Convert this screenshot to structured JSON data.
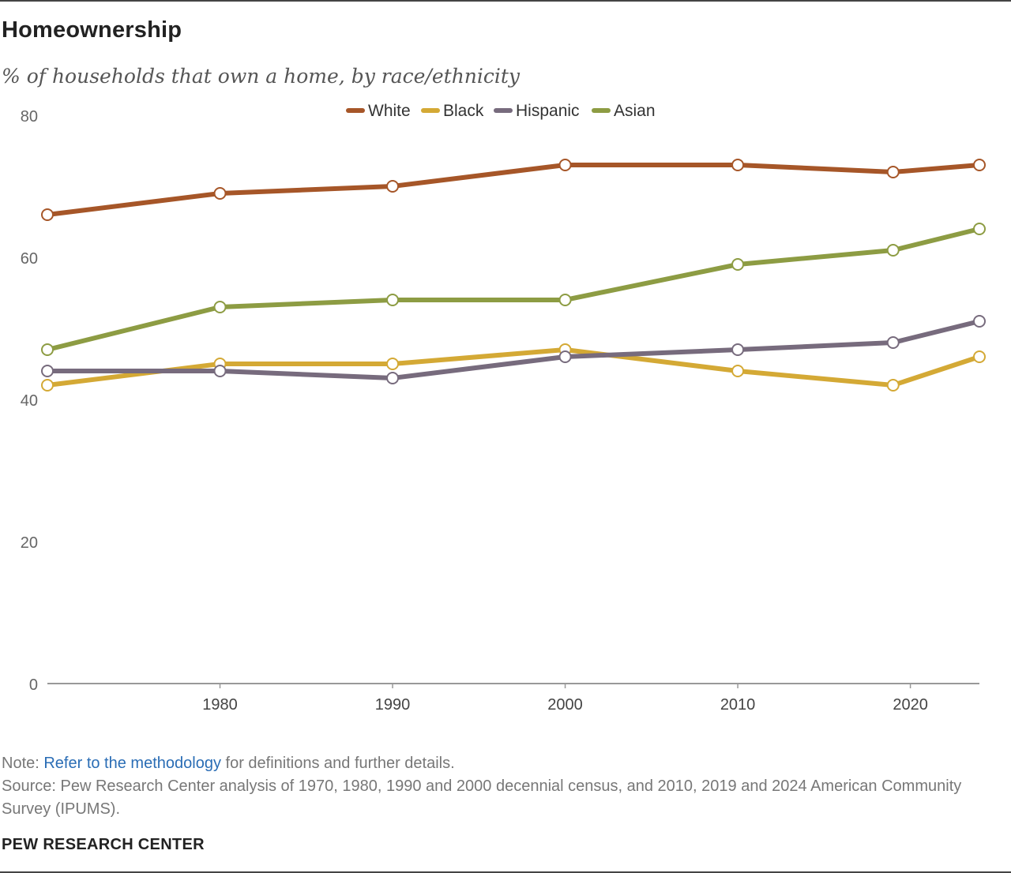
{
  "header": {
    "title": "Homeownership",
    "subtitle": "% of households that own a home, by race/ethnicity"
  },
  "chart_data": {
    "type": "line",
    "title": "Homeownership",
    "subtitle": "% of households that own a home, by race/ethnicity",
    "xlabel": "",
    "ylabel": "",
    "x": [
      1970,
      1980,
      1990,
      2000,
      2010,
      2019,
      2024
    ],
    "x_ticks": [
      "1980",
      "1990",
      "2000",
      "2010",
      "2020"
    ],
    "y_ticks": [
      "0",
      "20",
      "40",
      "60",
      "80"
    ],
    "xlim": [
      1970,
      2024
    ],
    "ylim": [
      0,
      80
    ],
    "grid": false,
    "legend_position": "top-center",
    "series": [
      {
        "name": "White",
        "color": "#a65628",
        "values": [
          66,
          69,
          70,
          73,
          73,
          72,
          73
        ]
      },
      {
        "name": "Black",
        "color": "#d4a935",
        "values": [
          42,
          45,
          45,
          47,
          44,
          42,
          46
        ]
      },
      {
        "name": "Hispanic",
        "color": "#776b7d",
        "values": [
          44,
          44,
          43,
          46,
          47,
          48,
          51
        ]
      },
      {
        "name": "Asian",
        "color": "#8d9c43",
        "values": [
          47,
          53,
          54,
          54,
          59,
          61,
          64
        ]
      }
    ]
  },
  "footer": {
    "note_prefix": "Note: ",
    "note_link": "Refer to the methodology",
    "note_suffix": " for definitions and further details.",
    "source": "Source: Pew Research Center analysis of 1970, 1980, 1990 and 2000 decennial census, and 2010, 2019 and 2024 American Community Survey (IPUMS).",
    "brand": "PEW RESEARCH CENTER"
  }
}
